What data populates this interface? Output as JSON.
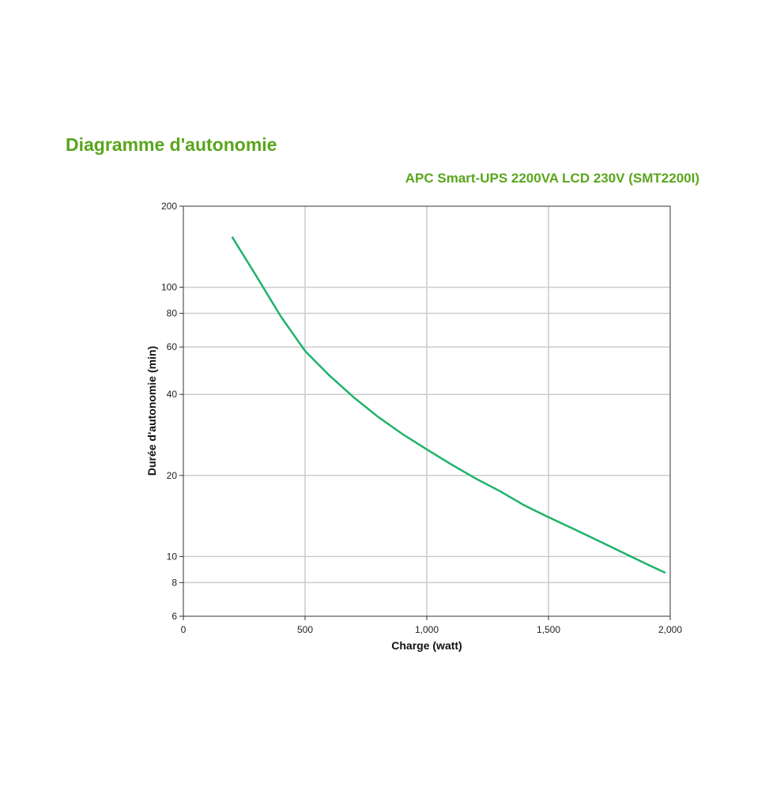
{
  "chart_data": {
    "type": "line",
    "title": "Diagramme d'autonomie",
    "subtitle": "APC Smart-UPS 2200VA LCD 230V (SMT2200I)",
    "x_label": "Charge (watt)",
    "y_label": "Durée d'autonomie (min)",
    "y_scale": "log",
    "grid": true,
    "xlim": [
      0,
      2000
    ],
    "xticks": [
      0,
      500,
      {
        "value": 1000,
        "label": "1,000"
      },
      {
        "value": 1500,
        "label": "1,500"
      },
      {
        "value": 2000,
        "label": "2,000"
      }
    ],
    "ylim": [
      6,
      200
    ],
    "yticks": [
      6,
      8,
      10,
      20,
      40,
      60,
      80,
      100,
      200
    ],
    "x": [
      200,
      300,
      400,
      500,
      600,
      700,
      800,
      900,
      1000,
      1100,
      1200,
      1300,
      1400,
      1500,
      1600,
      1700,
      1800,
      1900,
      1980
    ],
    "series": [
      {
        "name": "SMT2200I",
        "color": "#1db36a",
        "values": [
          154,
          110,
          78,
          58,
          47,
          39,
          33,
          28.5,
          25,
          22,
          19.5,
          17.5,
          15.5,
          14,
          12.7,
          11.5,
          10.4,
          9.4,
          8.7
        ]
      }
    ]
  }
}
